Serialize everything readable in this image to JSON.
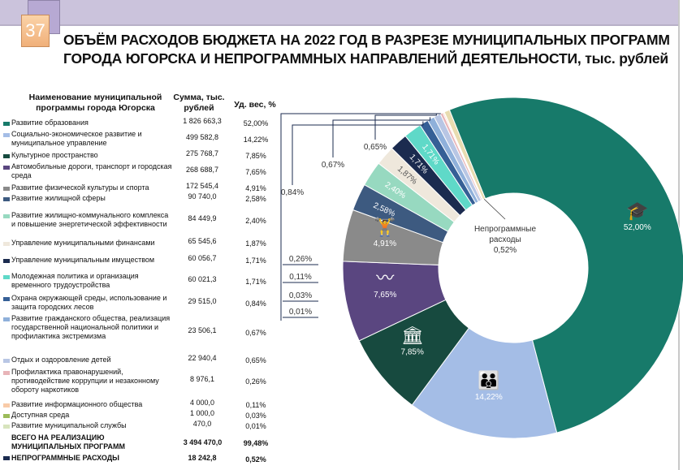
{
  "slide_number": "37",
  "title_line1": "ОБЪЁМ РАСХОДОВ БЮДЖЕТА НА 2022 ГОД В РАЗРЕЗЕ МУНИЦИПАЛЬНЫХ ПРОГРАММ",
  "title_line2": "ГОРОДА ЮГОРСКА И НЕПРОГРАММНЫХ НАПРАВЛЕНИЙ ДЕЯТЕЛЬНОСТИ, тыс. рублей",
  "table": {
    "headers": [
      "Наименование муниципальной программы города Югорска",
      "Сумма, тыс. рублей",
      "Уд. вес, %"
    ],
    "total": {
      "name": "ВСЕГО НА РЕАЛИЗАЦИЮ МУНИЦИПАЛЬНЫХ ПРОГРАММ",
      "sum": "3 494 470,0",
      "pct": "99,48%"
    },
    "nonprogram": {
      "name": "НЕПРОГРАММНЫЕ РАСХОДЫ",
      "sum": "18 242,8",
      "pct": "0,52%"
    }
  },
  "chart_data": {
    "type": "pie",
    "subtype": "donut",
    "center_label": "Непрограммные расходы",
    "center_value": "0,52%",
    "series": [
      {
        "name": "Развитие образования",
        "sum": "1 826 663,3",
        "label": "52,00%",
        "value": 52.0,
        "color": "#177a6a",
        "icon": "graduation-cap-icon"
      },
      {
        "name": "Социально-экономическое развитие и муниципальное управление",
        "sum": "499 582,8",
        "label": "14,22%",
        "value": 14.22,
        "color": "#a4bde6",
        "icon": "family-hands-icon"
      },
      {
        "name": "Культурное пространство",
        "sum": "275 768,7",
        "label": "7,85%",
        "value": 7.85,
        "color": "#174a3f",
        "icon": "museum-icon"
      },
      {
        "name": "Автомобильные дороги, транспорт и городская среда",
        "sum": "268 688,7",
        "label": "7,65%",
        "value": 7.65,
        "color": "#5a4680",
        "icon": "road-icon"
      },
      {
        "name": "Развитие физической культуры и спорта",
        "sum": "172 545,4",
        "label": "4,91%",
        "value": 4.91,
        "color": "#8a8a8a",
        "icon": "weightlifter-icon"
      },
      {
        "name": "Развитие жилищной сферы",
        "sum": "90 740,0",
        "label": "2,58%",
        "value": 2.58,
        "color": "#3d5a80"
      },
      {
        "name": "Развитие жилищно-коммунального комплекса и повышение энергетической эффективности",
        "sum": "84 449,9",
        "label": "2,40%",
        "value": 2.4,
        "color": "#97d9c0"
      },
      {
        "name": "Управление муниципальными финансами",
        "sum": "65 545,6",
        "label": "1,87%",
        "value": 1.87,
        "color": "#efe8dc"
      },
      {
        "name": "Управление муниципальным имуществом",
        "sum": "60 056,7",
        "label": "1,71%",
        "value": 1.71,
        "color": "#1b2b4f"
      },
      {
        "name": "Молодежная политика и организация временного трудоустройства",
        "sum": "60 021,3",
        "label": "1,71%",
        "value": 1.71,
        "color": "#5fd9c8"
      },
      {
        "name": "Охрана окружающей среды, использование и защита городских лесов",
        "sum": "29 515,0",
        "label": "0,84%",
        "value": 0.84,
        "color": "#355f96"
      },
      {
        "name": "Развитие гражданского общества, реализация государственной национальной политики и профилактика экстремизма",
        "sum": "23 506,1",
        "label": "0,67%",
        "value": 0.67,
        "color": "#8fb0da"
      },
      {
        "name": "Отдых и оздоровление детей",
        "sum": "22 940,4",
        "label": "0,65%",
        "value": 0.65,
        "color": "#b8c6e4"
      },
      {
        "name": "Профилактика правонарушений, противодействие коррупции и незаконному обороту наркотиков",
        "sum": "8 976,1",
        "label": "0,26%",
        "value": 0.26,
        "color": "#e8b4b8"
      },
      {
        "name": "Развитие информационного общества",
        "sum": "4 000,0",
        "label": "0,11%",
        "value": 0.11,
        "color": "#f8cba8"
      },
      {
        "name": "Доступная среда",
        "sum": "1 000,0",
        "label": "0,03%",
        "value": 0.03,
        "color": "#9bbb59"
      },
      {
        "name": "Развитие муниципальной службы",
        "sum": "470,0",
        "label": "0,01%",
        "value": 0.01,
        "color": "#d7e4bd"
      },
      {
        "name": "Непрограммные расходы",
        "sum": "18 242,8",
        "label": "0,52%",
        "value": 0.52,
        "color": "#e8dcb0"
      }
    ]
  }
}
